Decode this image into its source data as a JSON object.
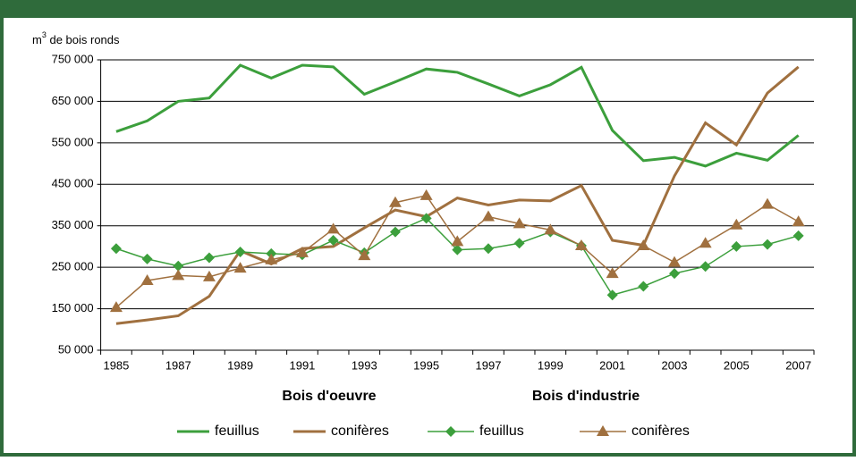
{
  "chart_data": {
    "type": "line",
    "y_label": {
      "base": "m",
      "sup": "3",
      "rest": " de bois ronds"
    },
    "group_labels": [
      "Bois d'oeuvre",
      "Bois d'industrie"
    ],
    "categories": [
      "1985",
      null,
      "1987",
      null,
      "1989",
      null,
      "1991",
      null,
      "1993",
      null,
      "1995",
      null,
      "1997",
      null,
      "1999",
      null,
      "2001",
      null,
      "2003",
      null,
      "2005",
      null,
      "2007"
    ],
    "ylim": [
      50000,
      750000
    ],
    "yticks": [
      {
        "value": 50000,
        "label": "50 000"
      },
      {
        "value": 150000,
        "label": "150 000"
      },
      {
        "value": 250000,
        "label": "250 000"
      },
      {
        "value": 350000,
        "label": "350 000"
      },
      {
        "value": 450000,
        "label": "450 000"
      },
      {
        "value": 550000,
        "label": "550 000"
      },
      {
        "value": 650000,
        "label": "650 000"
      },
      {
        "value": 750000,
        "label": "750 000"
      }
    ],
    "grid": true,
    "series": [
      {
        "name": "feuillus",
        "color": "#3c9f3c",
        "line_width": 3,
        "marker": "none",
        "values": [
          577000,
          603000,
          650000,
          658000,
          737000,
          706000,
          737000,
          733000,
          667000,
          697000,
          728000,
          720000,
          692000,
          663000,
          690000,
          732000,
          580000,
          507000,
          515000,
          494000,
          525000,
          508000,
          568000
        ]
      },
      {
        "name": "conifères",
        "color": "#a0703f",
        "line_width": 3,
        "marker": "none",
        "values": [
          114000,
          123000,
          133000,
          180000,
          290000,
          258000,
          295000,
          300000,
          345000,
          388000,
          372000,
          417000,
          400000,
          412000,
          410000,
          447000,
          315000,
          303000,
          470000,
          598000,
          545000,
          670000,
          733000
        ]
      },
      {
        "name": "feuillus",
        "color": "#3c9f3c",
        "line_width": 1.5,
        "marker": "diamond",
        "values": [
          295000,
          270000,
          253000,
          273000,
          287000,
          283000,
          280000,
          315000,
          285000,
          335000,
          368000,
          292000,
          295000,
          308000,
          335000,
          302000,
          183000,
          204000,
          235000,
          252000,
          300000,
          305000,
          326000
        ]
      },
      {
        "name": "conifères",
        "color": "#a0703f",
        "line_width": 1.5,
        "marker": "triangle",
        "values": [
          153000,
          218000,
          230000,
          227000,
          248000,
          268000,
          285000,
          342000,
          278000,
          406000,
          423000,
          312000,
          372000,
          355000,
          340000,
          302000,
          235000,
          302000,
          262000,
          308000,
          352000,
          402000,
          360000
        ]
      }
    ]
  }
}
